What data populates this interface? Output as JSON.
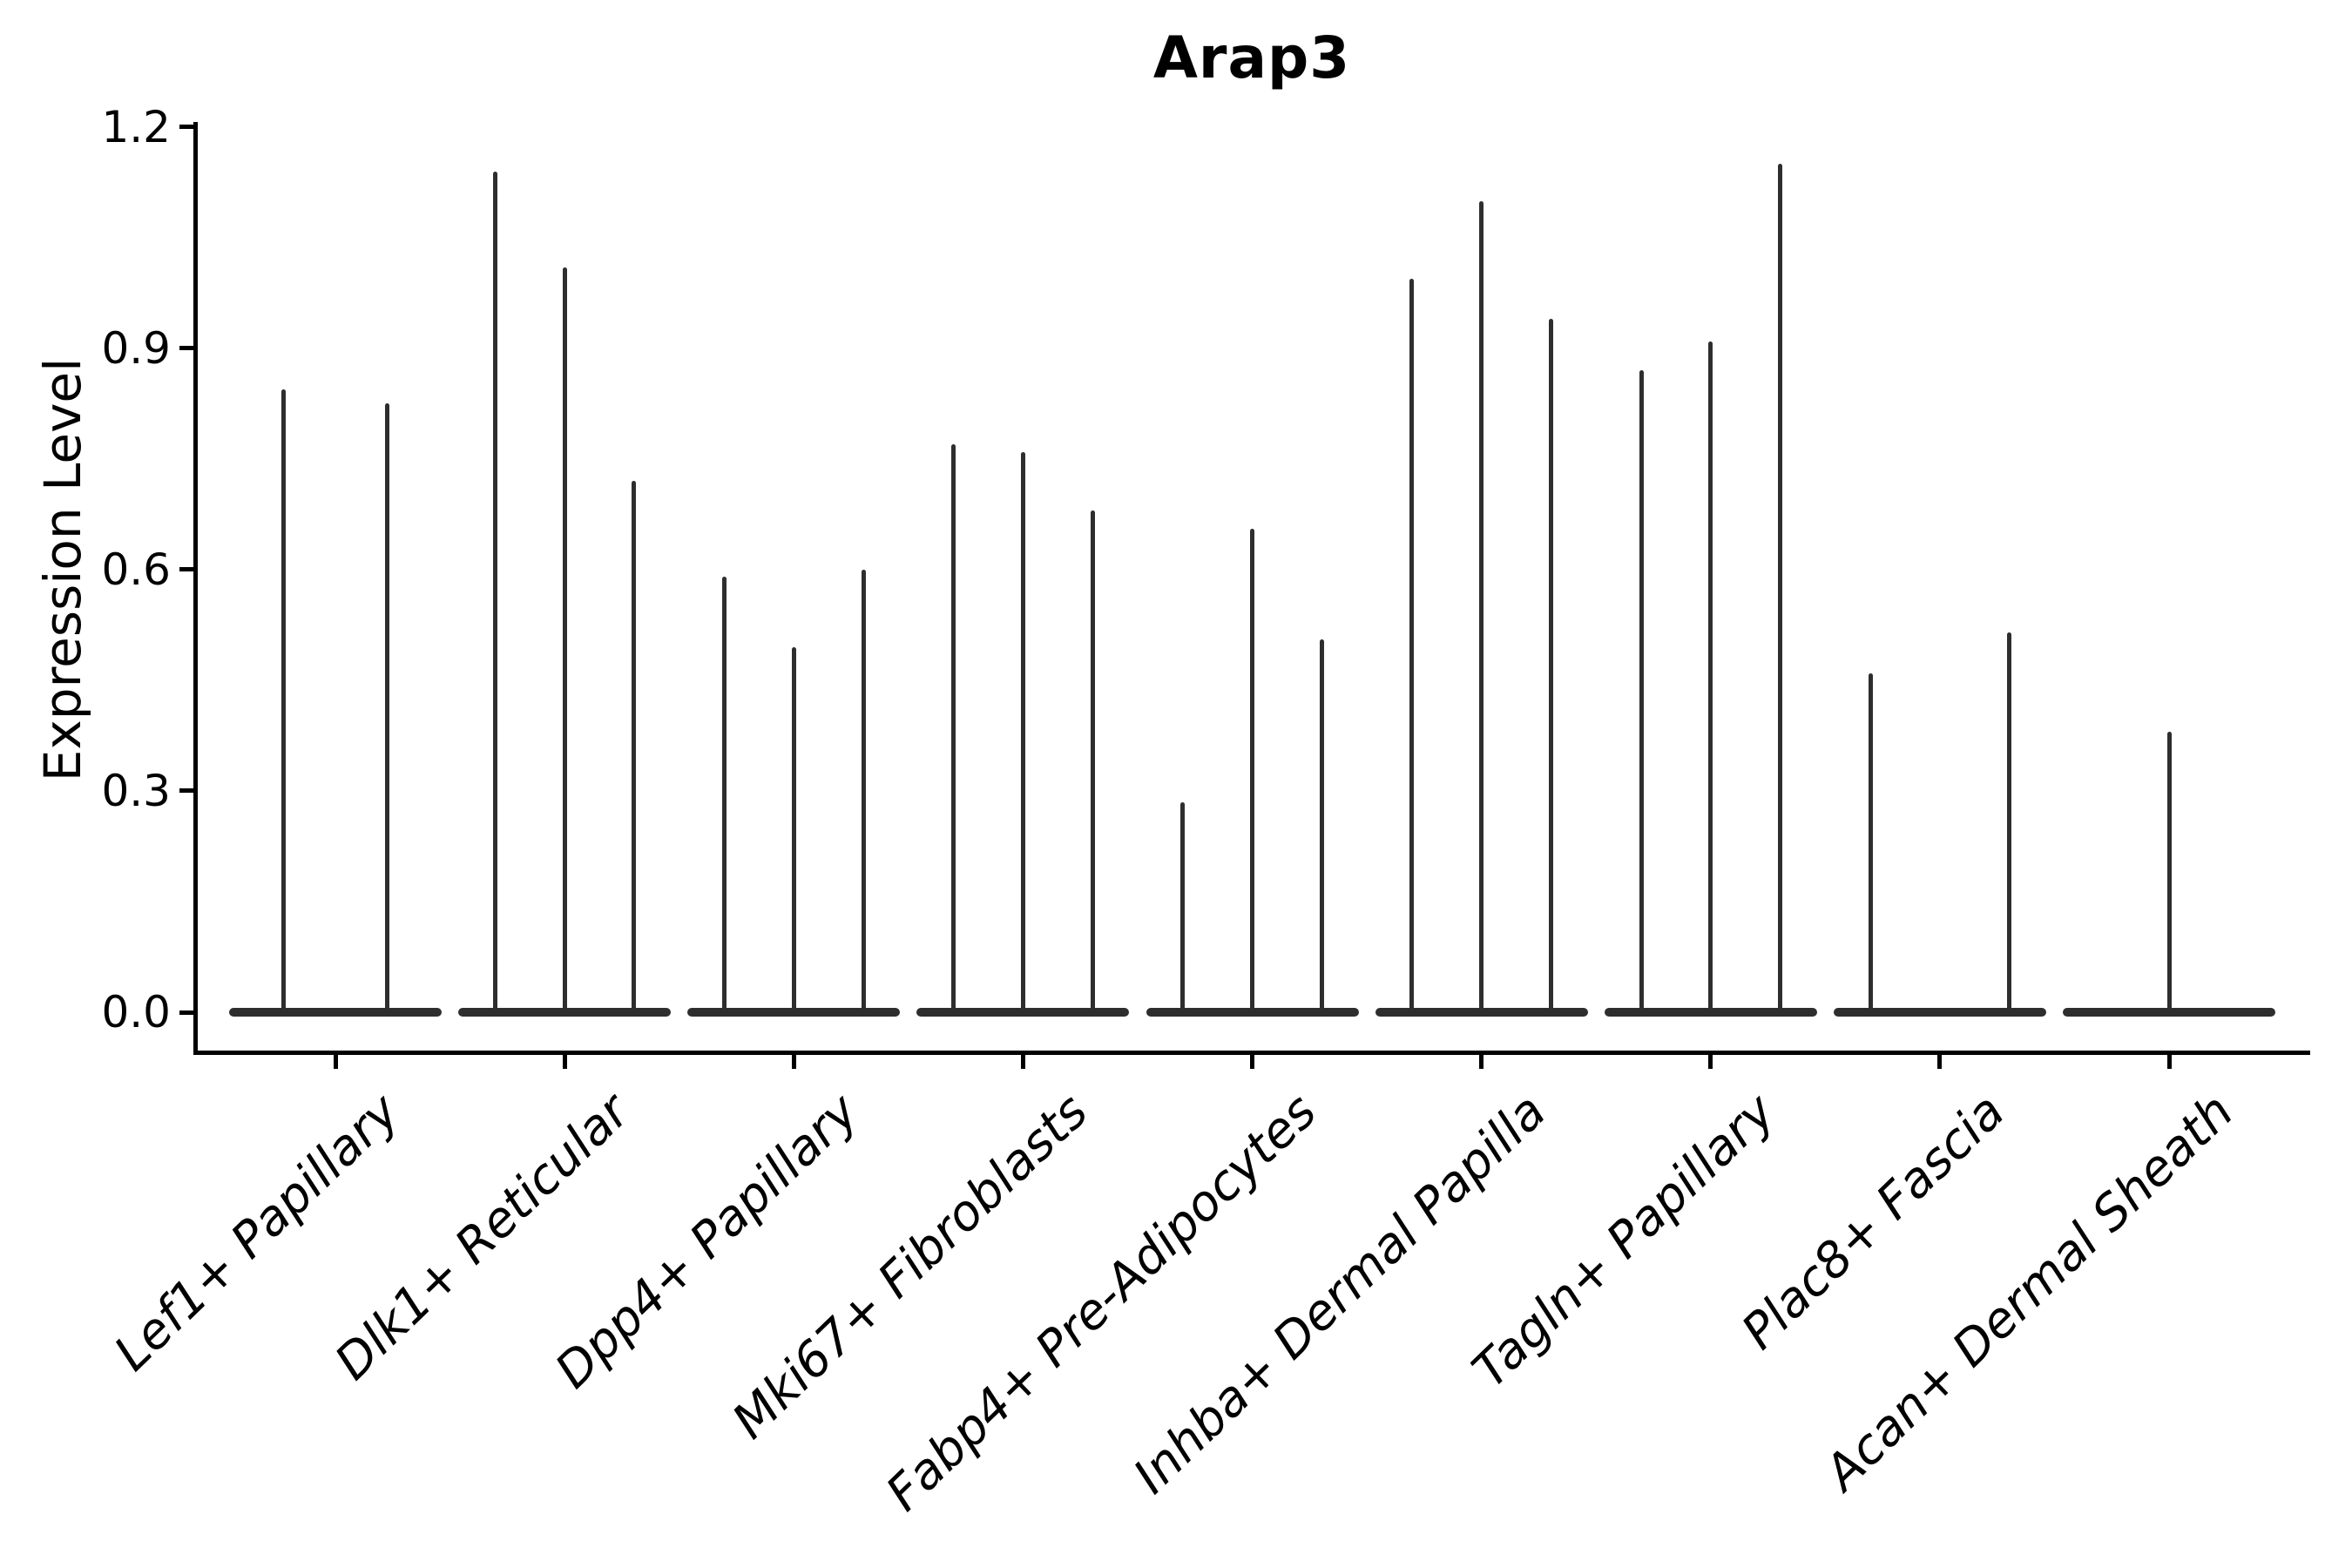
{
  "title": "Arap3",
  "y_axis": {
    "label": "Expression Level",
    "tick_labels": [
      "0.0",
      "0.3",
      "0.6",
      "0.9",
      "1.2"
    ]
  },
  "colors": {
    "violin_line": "#2e2e2e",
    "axis": "#000000",
    "background": "#ffffff"
  },
  "chart_data": {
    "type": "violin",
    "title": "Arap3",
    "xlabel": "",
    "ylabel": "Expression Level",
    "ylim": [
      0,
      1.2
    ],
    "yticks": [
      0,
      0.3,
      0.6,
      0.9,
      1.2
    ],
    "grid": false,
    "legend": "none",
    "description": "Single-cell gene expression violin plot; each category shows 1-3 very thin spike-like violins with a wide flat base at expression 0. Spike peak = maximum expression value reached.",
    "categories": [
      "Lef1+ Papillary",
      "Dlk1+ Reticular",
      "Dpp4+ Papillary",
      "Mki67+ Fibroblasts",
      "Fabp4+ Pre-Adipocytes",
      "Inhba+ Dermal Papilla",
      "Tagln+ Papillary",
      "Plac8+ Fascia",
      "Acan+ Dermal Sheath"
    ],
    "groups": [
      {
        "category": "Lef1+ Papillary",
        "violins": [
          {
            "slot": -0.225,
            "peak": 0.845
          },
          {
            "slot": 0.225,
            "peak": 0.825
          }
        ]
      },
      {
        "category": "Dlk1+ Reticular",
        "violins": [
          {
            "slot": -0.3,
            "peak": 1.14
          },
          {
            "slot": 0,
            "peak": 1.01
          },
          {
            "slot": 0.3,
            "peak": 0.72
          }
        ]
      },
      {
        "category": "Dpp4+ Papillary",
        "violins": [
          {
            "slot": -0.3,
            "peak": 0.59
          },
          {
            "slot": 0,
            "peak": 0.495
          },
          {
            "slot": 0.3,
            "peak": 0.6
          }
        ]
      },
      {
        "category": "Mki67+ Fibroblasts",
        "violins": [
          {
            "slot": -0.3,
            "peak": 0.77
          },
          {
            "slot": 0,
            "peak": 0.76
          },
          {
            "slot": 0.3,
            "peak": 0.68
          }
        ]
      },
      {
        "category": "Fabp4+ Pre-Adipocytes",
        "violins": [
          {
            "slot": -0.3,
            "peak": 0.285
          },
          {
            "slot": 0,
            "peak": 0.655
          },
          {
            "slot": 0.3,
            "peak": 0.505
          }
        ]
      },
      {
        "category": "Inhba+ Dermal Papilla",
        "violins": [
          {
            "slot": -0.3,
            "peak": 0.995
          },
          {
            "slot": 0,
            "peak": 1.1
          },
          {
            "slot": 0.3,
            "peak": 0.94
          }
        ]
      },
      {
        "category": "Tagln+ Papillary",
        "violins": [
          {
            "slot": -0.3,
            "peak": 0.87
          },
          {
            "slot": 0,
            "peak": 0.91
          },
          {
            "slot": 0.3,
            "peak": 1.15
          }
        ]
      },
      {
        "category": "Plac8+ Fascia",
        "violins": [
          {
            "slot": -0.3,
            "peak": 0.46
          },
          {
            "slot": 0.3,
            "peak": 0.515
          }
        ]
      },
      {
        "category": "Acan+ Dermal Sheath",
        "violins": [
          {
            "slot": 0,
            "peak": 0.38
          }
        ]
      }
    ]
  }
}
